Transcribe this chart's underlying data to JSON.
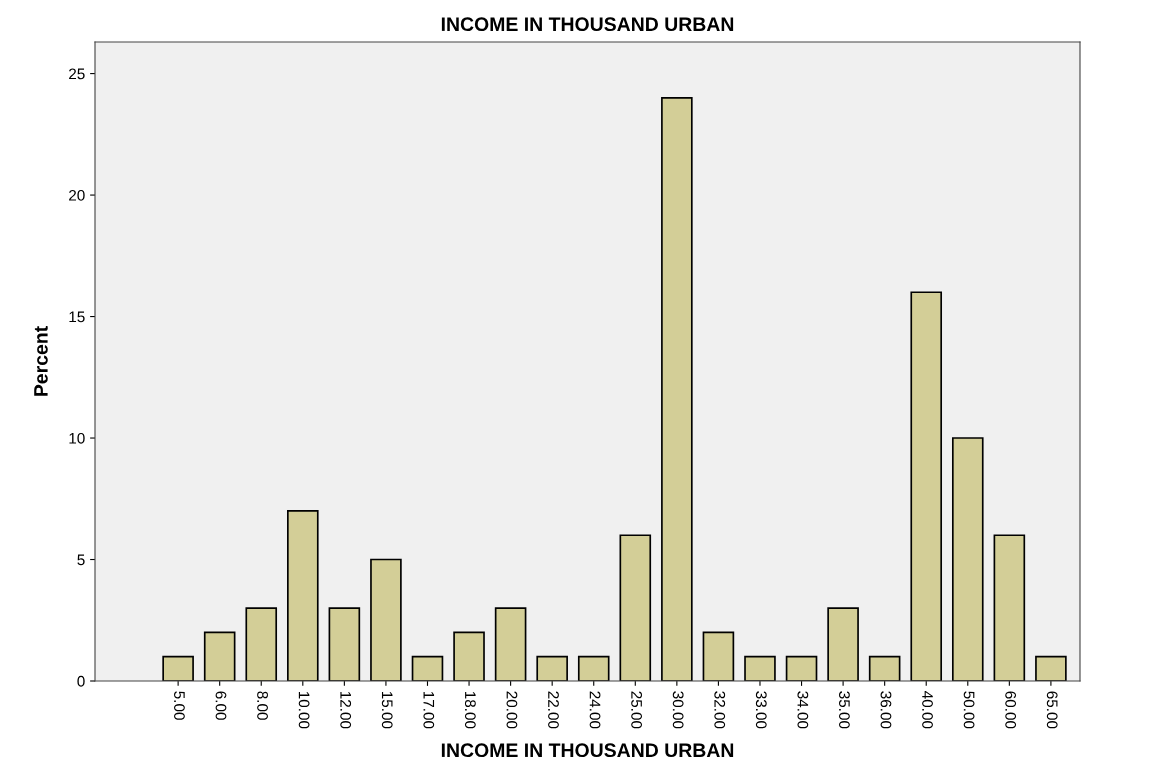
{
  "chart_data": {
    "type": "bar",
    "title": "INCOME IN THOUSAND URBAN",
    "xlabel": "INCOME IN THOUSAND URBAN",
    "ylabel": "Percent",
    "categories": [
      "5.00",
      "6.00",
      "8.00",
      "10.00",
      "12.00",
      "15.00",
      "17.00",
      "18.00",
      "20.00",
      "22.00",
      "24.00",
      "25.00",
      "30.00",
      "32.00",
      "33.00",
      "34.00",
      "35.00",
      "36.00",
      "40.00",
      "50.00",
      "60.00",
      "65.00"
    ],
    "values": [
      1,
      2,
      3,
      7,
      3,
      5,
      1,
      2,
      3,
      1,
      1,
      6,
      24,
      2,
      1,
      1,
      3,
      1,
      16,
      10,
      6,
      1
    ],
    "color": "#d3ce97",
    "ylim": [
      0,
      26.3
    ],
    "yticks": [
      0,
      5,
      10,
      15,
      20,
      25
    ],
    "grid": false
  }
}
